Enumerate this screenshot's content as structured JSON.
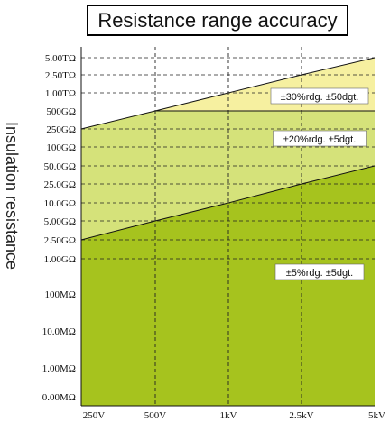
{
  "chart_data": {
    "type": "area",
    "title": "Resistance range accuracy",
    "ylabel": "Insulation resistance",
    "xlabel": "",
    "x_ticks": [
      "250V",
      "500V",
      "1kV",
      "2.5kV",
      "5kV"
    ],
    "y_ticks": [
      "5.00TΩ",
      "2.50TΩ",
      "1.00TΩ",
      "500GΩ",
      "250GΩ",
      "100GΩ",
      "50.0GΩ",
      "25.0GΩ",
      "10.0GΩ",
      "5.00GΩ",
      "2.50GΩ",
      "1.00GΩ",
      "100MΩ",
      "10.0MΩ",
      "1.00MΩ",
      "0.00MΩ"
    ],
    "x_scale": "categorical",
    "y_scale": "categorical",
    "grid": {
      "vertical_dashed_at": [
        "500V",
        "1kV",
        "2.5kV"
      ],
      "horizontal_dashed_at": [
        "5.00TΩ",
        "2.50TΩ",
        "1.00TΩ",
        "250GΩ",
        "100GΩ",
        "50.0GΩ",
        "25.0GΩ",
        "10.0GΩ",
        "5.00GΩ",
        "2.50GΩ",
        "1.00GΩ"
      ]
    },
    "boundaries": [
      {
        "points": [
          [
            "250V",
            "250GΩ"
          ],
          [
            "500V",
            "500GΩ"
          ],
          [
            "1kV",
            "1.00TΩ"
          ],
          [
            "2.5kV",
            "2.50TΩ"
          ],
          [
            "5kV",
            "5.00TΩ"
          ]
        ]
      },
      {
        "points": [
          [
            "250V",
            "500GΩ"
          ],
          [
            "5kV",
            "500GΩ"
          ]
        ]
      },
      {
        "points": [
          [
            "250V",
            "2.50GΩ"
          ],
          [
            "500V",
            "5.00GΩ"
          ],
          [
            "1kV",
            "10.0GΩ"
          ],
          [
            "2.5kV",
            "25.0GΩ"
          ],
          [
            "5kV",
            "50.0GΩ"
          ]
        ]
      }
    ],
    "bands": [
      {
        "label": "±30%rdg. ±50dgt.",
        "range": [
          "500GΩ",
          "upper boundary"
        ],
        "color": "#f6f0a0",
        "label_pos": [
          "1kV",
          "1.00TΩ"
        ]
      },
      {
        "label": "±20%rdg. ±5dgt.",
        "range": [
          "middle boundary",
          "500GΩ"
        ],
        "color": "#d5e27a",
        "label_pos": [
          "1kV",
          "250GΩ"
        ]
      },
      {
        "label": "±5%rdg. ±5dgt.",
        "range": [
          "0.00MΩ",
          "lower boundary"
        ],
        "color": "#a6c31e",
        "label_pos": [
          "1kV",
          "100MΩ"
        ]
      }
    ]
  }
}
